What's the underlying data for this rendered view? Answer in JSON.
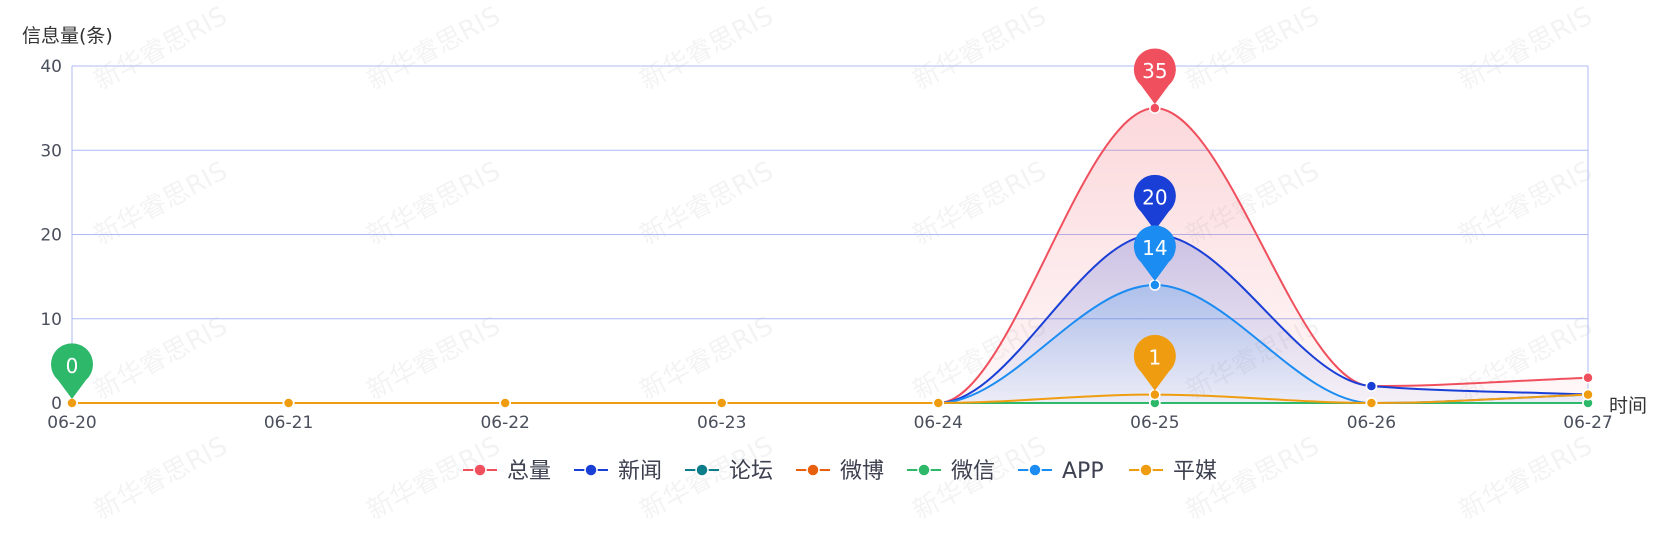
{
  "watermark": "新华睿思RIS",
  "chart_data": {
    "type": "line",
    "smooth": true,
    "ylabel": "信息量(条)",
    "xlabel": "时间",
    "ylim": [
      0,
      40
    ],
    "yticks": [
      0,
      10,
      20,
      30,
      40
    ],
    "grid": true,
    "legend_position": "bottom-center",
    "categories": [
      "06-20",
      "06-21",
      "06-22",
      "06-23",
      "06-24",
      "06-25",
      "06-26",
      "06-27"
    ],
    "series": [
      {
        "name": "总量",
        "color": "#f0505e",
        "values": [
          0,
          0,
          0,
          0,
          0,
          35,
          2,
          3
        ],
        "area": true,
        "pin": {
          "index": 5,
          "label": "35"
        }
      },
      {
        "name": "新闻",
        "color": "#1a3fd6",
        "values": [
          0,
          0,
          0,
          0,
          0,
          20,
          2,
          1
        ],
        "area": true,
        "pin": {
          "index": 5,
          "label": "20"
        }
      },
      {
        "name": "论坛",
        "color": "#0d7d8a",
        "values": [
          0,
          0,
          0,
          0,
          0,
          0,
          0,
          0
        ],
        "area": false
      },
      {
        "name": "微博",
        "color": "#e8600e",
        "values": [
          0,
          0,
          0,
          0,
          0,
          0,
          0,
          0
        ],
        "area": false
      },
      {
        "name": "微信",
        "color": "#2db86a",
        "values": [
          0,
          0,
          0,
          0,
          0,
          0,
          0,
          0
        ],
        "area": false,
        "pin": {
          "index": 0,
          "label": "0"
        }
      },
      {
        "name": "APP",
        "color": "#1b8cf2",
        "values": [
          0,
          0,
          0,
          0,
          0,
          14,
          0,
          1
        ],
        "area": true,
        "pin": {
          "index": 5,
          "label": "14"
        }
      },
      {
        "name": "平媒",
        "color": "#f09c10",
        "values": [
          0,
          0,
          0,
          0,
          0,
          1,
          0,
          1
        ],
        "area": false,
        "pin": {
          "index": 5,
          "label": "1"
        }
      }
    ]
  }
}
